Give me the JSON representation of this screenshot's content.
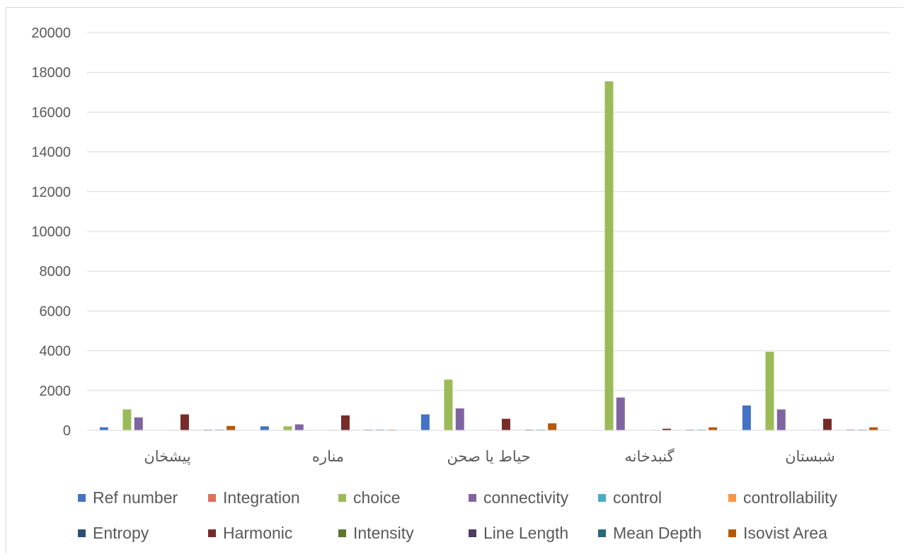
{
  "chart_data": {
    "type": "bar",
    "categories": [
      "پیشخان",
      "مناره",
      "حیاط یا صحن",
      "گنبدخانه",
      "شبستان"
    ],
    "ylim": [
      0,
      20000
    ],
    "yticks": [
      "0",
      "2000",
      "4000",
      "6000",
      "8000",
      "10000",
      "12000",
      "14000",
      "16000",
      "18000",
      "20000"
    ],
    "grid": true,
    "legend_position": "bottom",
    "series": [
      {
        "name": "Ref number",
        "color": "#4472c4",
        "values": [
          150,
          200,
          800,
          0,
          1250
        ]
      },
      {
        "name": "Integration",
        "color": "#e0705a",
        "values": [
          10,
          10,
          10,
          10,
          10
        ]
      },
      {
        "name": "choice",
        "color": "#9bbb59",
        "values": [
          1050,
          200,
          2550,
          17550,
          3950
        ]
      },
      {
        "name": "connectivity",
        "color": "#8064a2",
        "values": [
          650,
          300,
          1100,
          1650,
          1050
        ]
      },
      {
        "name": "control",
        "color": "#4bacc6",
        "values": [
          15,
          15,
          15,
          15,
          15
        ]
      },
      {
        "name": "controllability",
        "color": "#f79646",
        "values": [
          10,
          10,
          10,
          10,
          10
        ]
      },
      {
        "name": "Entropy",
        "color": "#2c4d75",
        "values": [
          20,
          20,
          20,
          20,
          20
        ]
      },
      {
        "name": "Harmonic",
        "color": "#772c2a",
        "values": [
          800,
          750,
          580,
          80,
          580
        ]
      },
      {
        "name": "Intensity",
        "color": "#5f7530",
        "values": [
          20,
          20,
          20,
          20,
          20
        ]
      },
      {
        "name": "Line Length",
        "color": "#4d3b62",
        "values": [
          30,
          30,
          30,
          30,
          30
        ]
      },
      {
        "name": "Mean Depth",
        "color": "#276a7c",
        "values": [
          30,
          30,
          30,
          30,
          30
        ]
      },
      {
        "name": "Isovist Area",
        "color": "#b65708",
        "values": [
          220,
          30,
          350,
          150,
          150
        ]
      }
    ]
  }
}
